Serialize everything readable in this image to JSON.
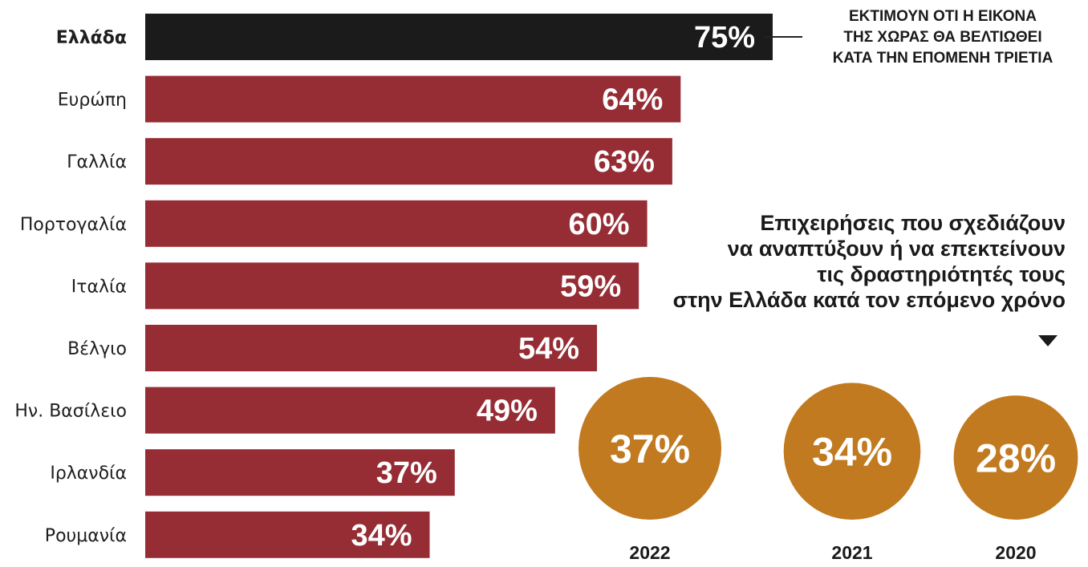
{
  "chart_data": [
    {
      "type": "bar",
      "orientation": "horizontal",
      "categories": [
        "Ελλάδα",
        "Ευρώπη",
        "Γαλλία",
        "Πορτογαλία",
        "Ιταλία",
        "Βέλγιο",
        "Ην. Βασίλειο",
        "Ιρλανδία",
        "Ρουμανία"
      ],
      "values": [
        75,
        64,
        63,
        60,
        59,
        54,
        49,
        37,
        34
      ],
      "value_labels": [
        "75%",
        "64%",
        "63%",
        "60%",
        "59%",
        "54%",
        "49%",
        "37%",
        "34%"
      ],
      "highlight_category": "Ελλάδα",
      "annotation": "ΕΚΤΙΜΟΥΝ ΟΤΙ Η ΕΙΚΟΝΑ\nΤΗΣ ΧΩΡΑΣ ΘΑ ΒΕΛΤΙΩΘΕΙ\nΚΑΤΑ ΤΗΝ ΕΠΟΜΕΝΗ ΤΡΙΕΤΙΑ",
      "colors": {
        "highlight": "#1b1b1b",
        "bar": "#962d35"
      },
      "xlim": [
        0,
        100
      ]
    },
    {
      "type": "bubble",
      "title": "Επιχειρήσεις που σχεδιάζουν\nνα αναπτύξουν ή να επεκτείνουν\nτις δραστηριότητές τους\nστην Ελλάδα κατά τον επόμενο χρόνο",
      "categories": [
        "2022",
        "2021",
        "2020"
      ],
      "values": [
        37,
        34,
        28
      ],
      "value_labels": [
        "37%",
        "34%",
        "28%"
      ],
      "colors": {
        "circle": "#c17a1f"
      }
    }
  ]
}
